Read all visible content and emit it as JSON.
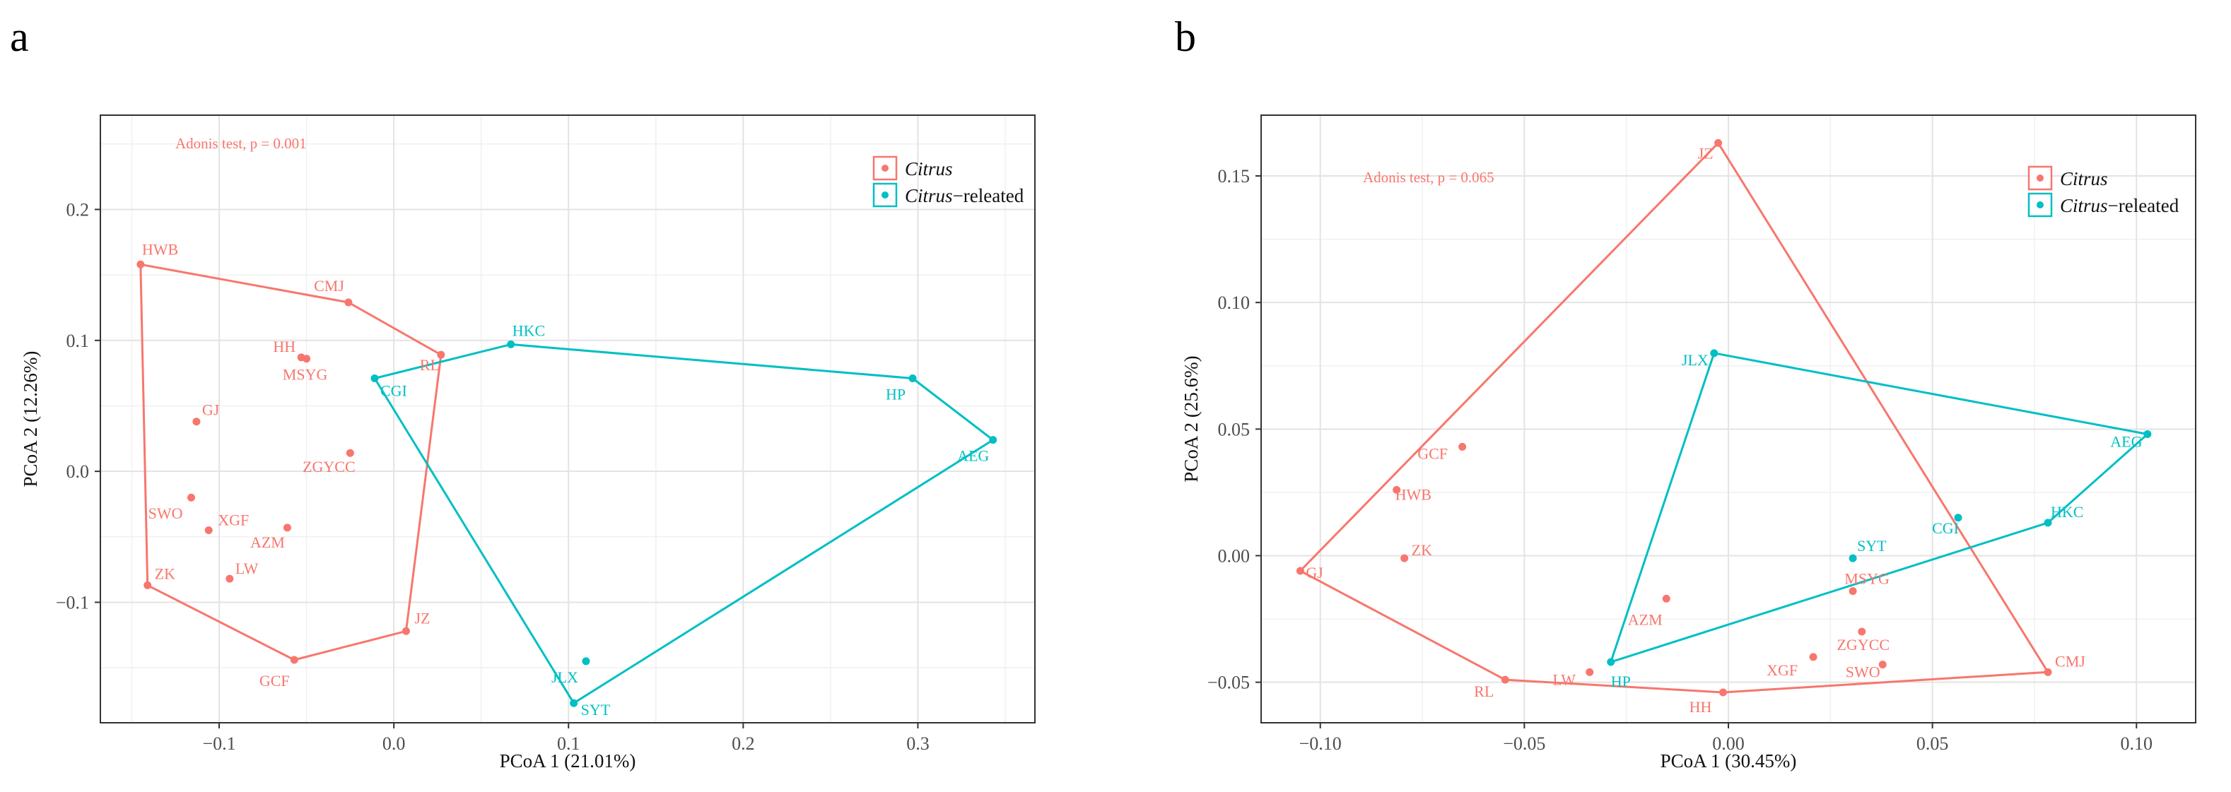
{
  "chart_data": [
    {
      "type": "scatter",
      "panel_label": "a",
      "annotation": "Adonis test, p = 0.001",
      "xlabel": "PCoA 1 (21.01%)",
      "ylabel": "PCoA 2 (12.26%)",
      "xlim": [
        -0.168,
        0.367
      ],
      "ylim": [
        -0.192,
        0.272
      ],
      "xticks": [
        -0.1,
        0.0,
        0.1,
        0.2,
        0.3
      ],
      "xtick_labels": [
        "−0.1",
        "0.0",
        "0.1",
        "0.2",
        "0.3"
      ],
      "yticks": [
        -0.1,
        0.0,
        0.1,
        0.2
      ],
      "ytick_labels": [
        "−0.1",
        "0.0",
        "0.1",
        "0.2"
      ],
      "grid": true,
      "legend_position": "top-right",
      "series": [
        {
          "name": "Citrus",
          "legend_italic": "Citrus",
          "legend_suffix": "",
          "color": "#F8766D",
          "points": [
            {
              "label": "HWB",
              "x": -0.145,
              "y": 0.158
            },
            {
              "label": "CMJ",
              "x": -0.026,
              "y": 0.129
            },
            {
              "label": "RL",
              "x": 0.027,
              "y": 0.089
            },
            {
              "label": "HH",
              "x": -0.053,
              "y": 0.087
            },
            {
              "label": "MSYG",
              "x": -0.05,
              "y": 0.086
            },
            {
              "label": "GJ",
              "x": -0.113,
              "y": 0.038
            },
            {
              "label": "ZGYCC",
              "x": -0.025,
              "y": 0.014
            },
            {
              "label": "SWO",
              "x": -0.116,
              "y": -0.02
            },
            {
              "label": "XGF",
              "x": -0.106,
              "y": -0.045
            },
            {
              "label": "AZM",
              "x": -0.061,
              "y": -0.043
            },
            {
              "label": "LW",
              "x": -0.094,
              "y": -0.082
            },
            {
              "label": "ZK",
              "x": -0.141,
              "y": -0.087
            },
            {
              "label": "JZ",
              "x": 0.007,
              "y": -0.122
            },
            {
              "label": "GCF",
              "x": -0.057,
              "y": -0.144
            }
          ],
          "hull": [
            "HWB",
            "CMJ",
            "RL",
            "JZ",
            "GCF",
            "ZK"
          ]
        },
        {
          "name": "Citrus−releated",
          "legend_italic": "Citrus",
          "legend_suffix": "−releated",
          "color": "#00BFC4",
          "points": [
            {
              "label": "HKC",
              "x": 0.067,
              "y": 0.097
            },
            {
              "label": "HP",
              "x": 0.297,
              "y": 0.071
            },
            {
              "label": "CGI",
              "x": -0.011,
              "y": 0.071
            },
            {
              "label": "AEG",
              "x": 0.343,
              "y": 0.024
            },
            {
              "label": "JLX",
              "x": 0.11,
              "y": -0.145
            },
            {
              "label": "SYT",
              "x": 0.103,
              "y": -0.177
            }
          ],
          "hull": [
            "CGI",
            "HKC",
            "HP",
            "AEG",
            "SYT"
          ]
        }
      ]
    },
    {
      "type": "scatter",
      "panel_label": "b",
      "annotation": "Adonis test, p = 0.065",
      "xlabel": "PCoA 1 (30.45%)",
      "ylabel": "PCoA 2 (25.6%)",
      "xlim": [
        -0.1145,
        0.1145
      ],
      "ylim": [
        -0.066,
        0.174
      ],
      "xticks": [
        -0.1,
        -0.05,
        0.0,
        0.05,
        0.1
      ],
      "xtick_labels": [
        "−0.10",
        "−0.05",
        "0.00",
        "0.05",
        "0.10"
      ],
      "yticks": [
        -0.05,
        0.0,
        0.05,
        0.1,
        0.15
      ],
      "ytick_labels": [
        "−0.05",
        "0.00",
        "0.05",
        "0.10",
        "0.15"
      ],
      "grid": true,
      "legend_position": "top-right",
      "series": [
        {
          "name": "Citrus",
          "legend_italic": "Citrus",
          "legend_suffix": "",
          "color": "#F8766D",
          "points": [
            {
              "label": "JZ",
              "x": -0.0025,
              "y": 0.163
            },
            {
              "label": "GCF",
              "x": -0.0652,
              "y": 0.043
            },
            {
              "label": "HWB",
              "x": -0.0813,
              "y": 0.026
            },
            {
              "label": "ZK",
              "x": -0.0794,
              "y": -0.001
            },
            {
              "label": "GJ",
              "x": -0.1049,
              "y": -0.006
            },
            {
              "label": "AZM",
              "x": -0.0152,
              "y": -0.017
            },
            {
              "label": "MSYG",
              "x": 0.0305,
              "y": -0.014
            },
            {
              "label": "ZGYCC",
              "x": 0.0327,
              "y": -0.03
            },
            {
              "label": "XGF",
              "x": 0.0208,
              "y": -0.04
            },
            {
              "label": "SWO",
              "x": 0.0378,
              "y": -0.043
            },
            {
              "label": "LW",
              "x": -0.034,
              "y": -0.046
            },
            {
              "label": "CMJ",
              "x": 0.0783,
              "y": -0.046
            },
            {
              "label": "RL",
              "x": -0.0547,
              "y": -0.049
            },
            {
              "label": "HH",
              "x": -0.0013,
              "y": -0.054
            }
          ],
          "hull": [
            "JZ",
            "CMJ",
            "HH",
            "RL",
            "GJ"
          ]
        },
        {
          "name": "Citrus−releated",
          "legend_italic": "Citrus",
          "legend_suffix": "−releated",
          "color": "#00BFC4",
          "points": [
            {
              "label": "JLX",
              "x": -0.0035,
              "y": 0.08
            },
            {
              "label": "AEG",
              "x": 0.1027,
              "y": 0.048
            },
            {
              "label": "CGI",
              "x": 0.0563,
              "y": 0.015
            },
            {
              "label": "HKC",
              "x": 0.0783,
              "y": 0.013
            },
            {
              "label": "SYT",
              "x": 0.0305,
              "y": -0.001
            },
            {
              "label": "HP",
              "x": -0.0288,
              "y": -0.042
            }
          ],
          "hull": [
            "JLX",
            "AEG",
            "HKC",
            "HP"
          ]
        }
      ]
    }
  ]
}
